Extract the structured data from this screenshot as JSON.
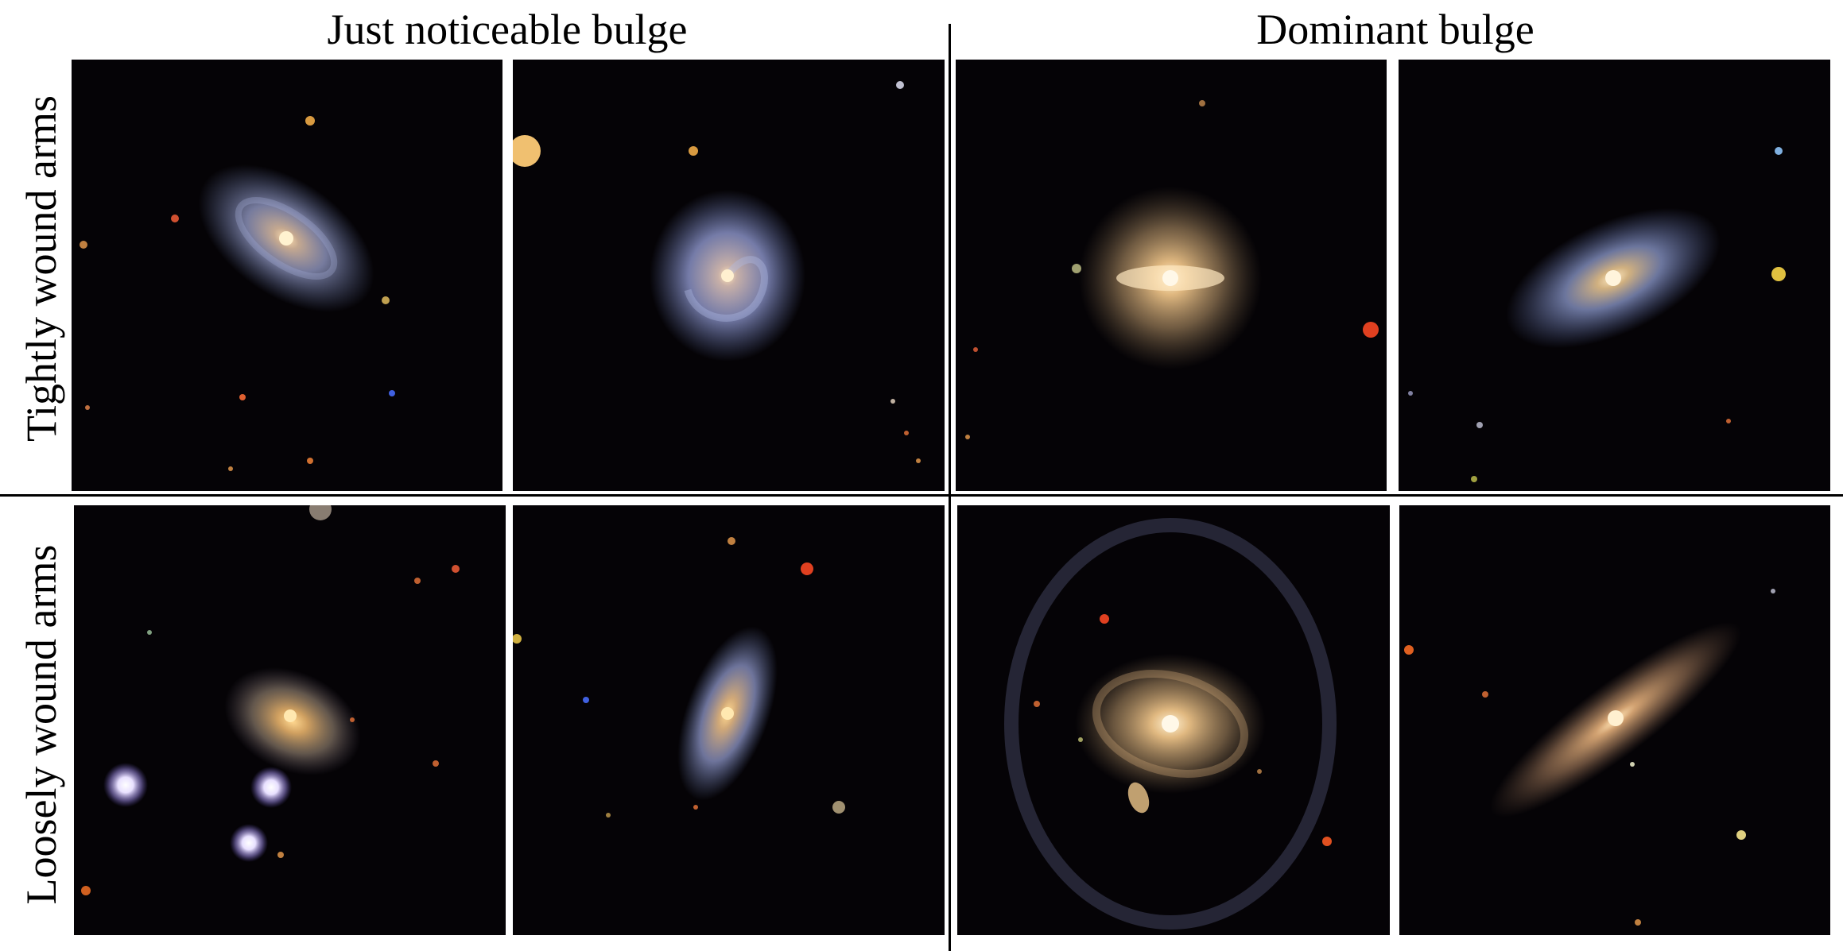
{
  "columns": {
    "left_title": "Just noticeable bulge",
    "right_title": "Dominant bulge"
  },
  "rows": {
    "top_title": "Tightly wound arms",
    "bottom_title": "Loosely wound arms"
  },
  "panels": [
    {
      "row": "top",
      "column": "left",
      "index": 1,
      "subject": "spiral-galaxy"
    },
    {
      "row": "top",
      "column": "left",
      "index": 2,
      "subject": "spiral-galaxy"
    },
    {
      "row": "top",
      "column": "right",
      "index": 1,
      "subject": "spiral-galaxy"
    },
    {
      "row": "top",
      "column": "right",
      "index": 2,
      "subject": "spiral-galaxy"
    },
    {
      "row": "bottom",
      "column": "left",
      "index": 1,
      "subject": "spiral-galaxy"
    },
    {
      "row": "bottom",
      "column": "left",
      "index": 2,
      "subject": "spiral-galaxy"
    },
    {
      "row": "bottom",
      "column": "right",
      "index": 1,
      "subject": "spiral-galaxy"
    },
    {
      "row": "bottom",
      "column": "right",
      "index": 2,
      "subject": "spiral-galaxy"
    }
  ],
  "colors": {
    "background": "#050306",
    "galaxy_core": "#ffd9a0",
    "blue_disk": "#8c96c8",
    "warm_disk": "#b08a60"
  }
}
